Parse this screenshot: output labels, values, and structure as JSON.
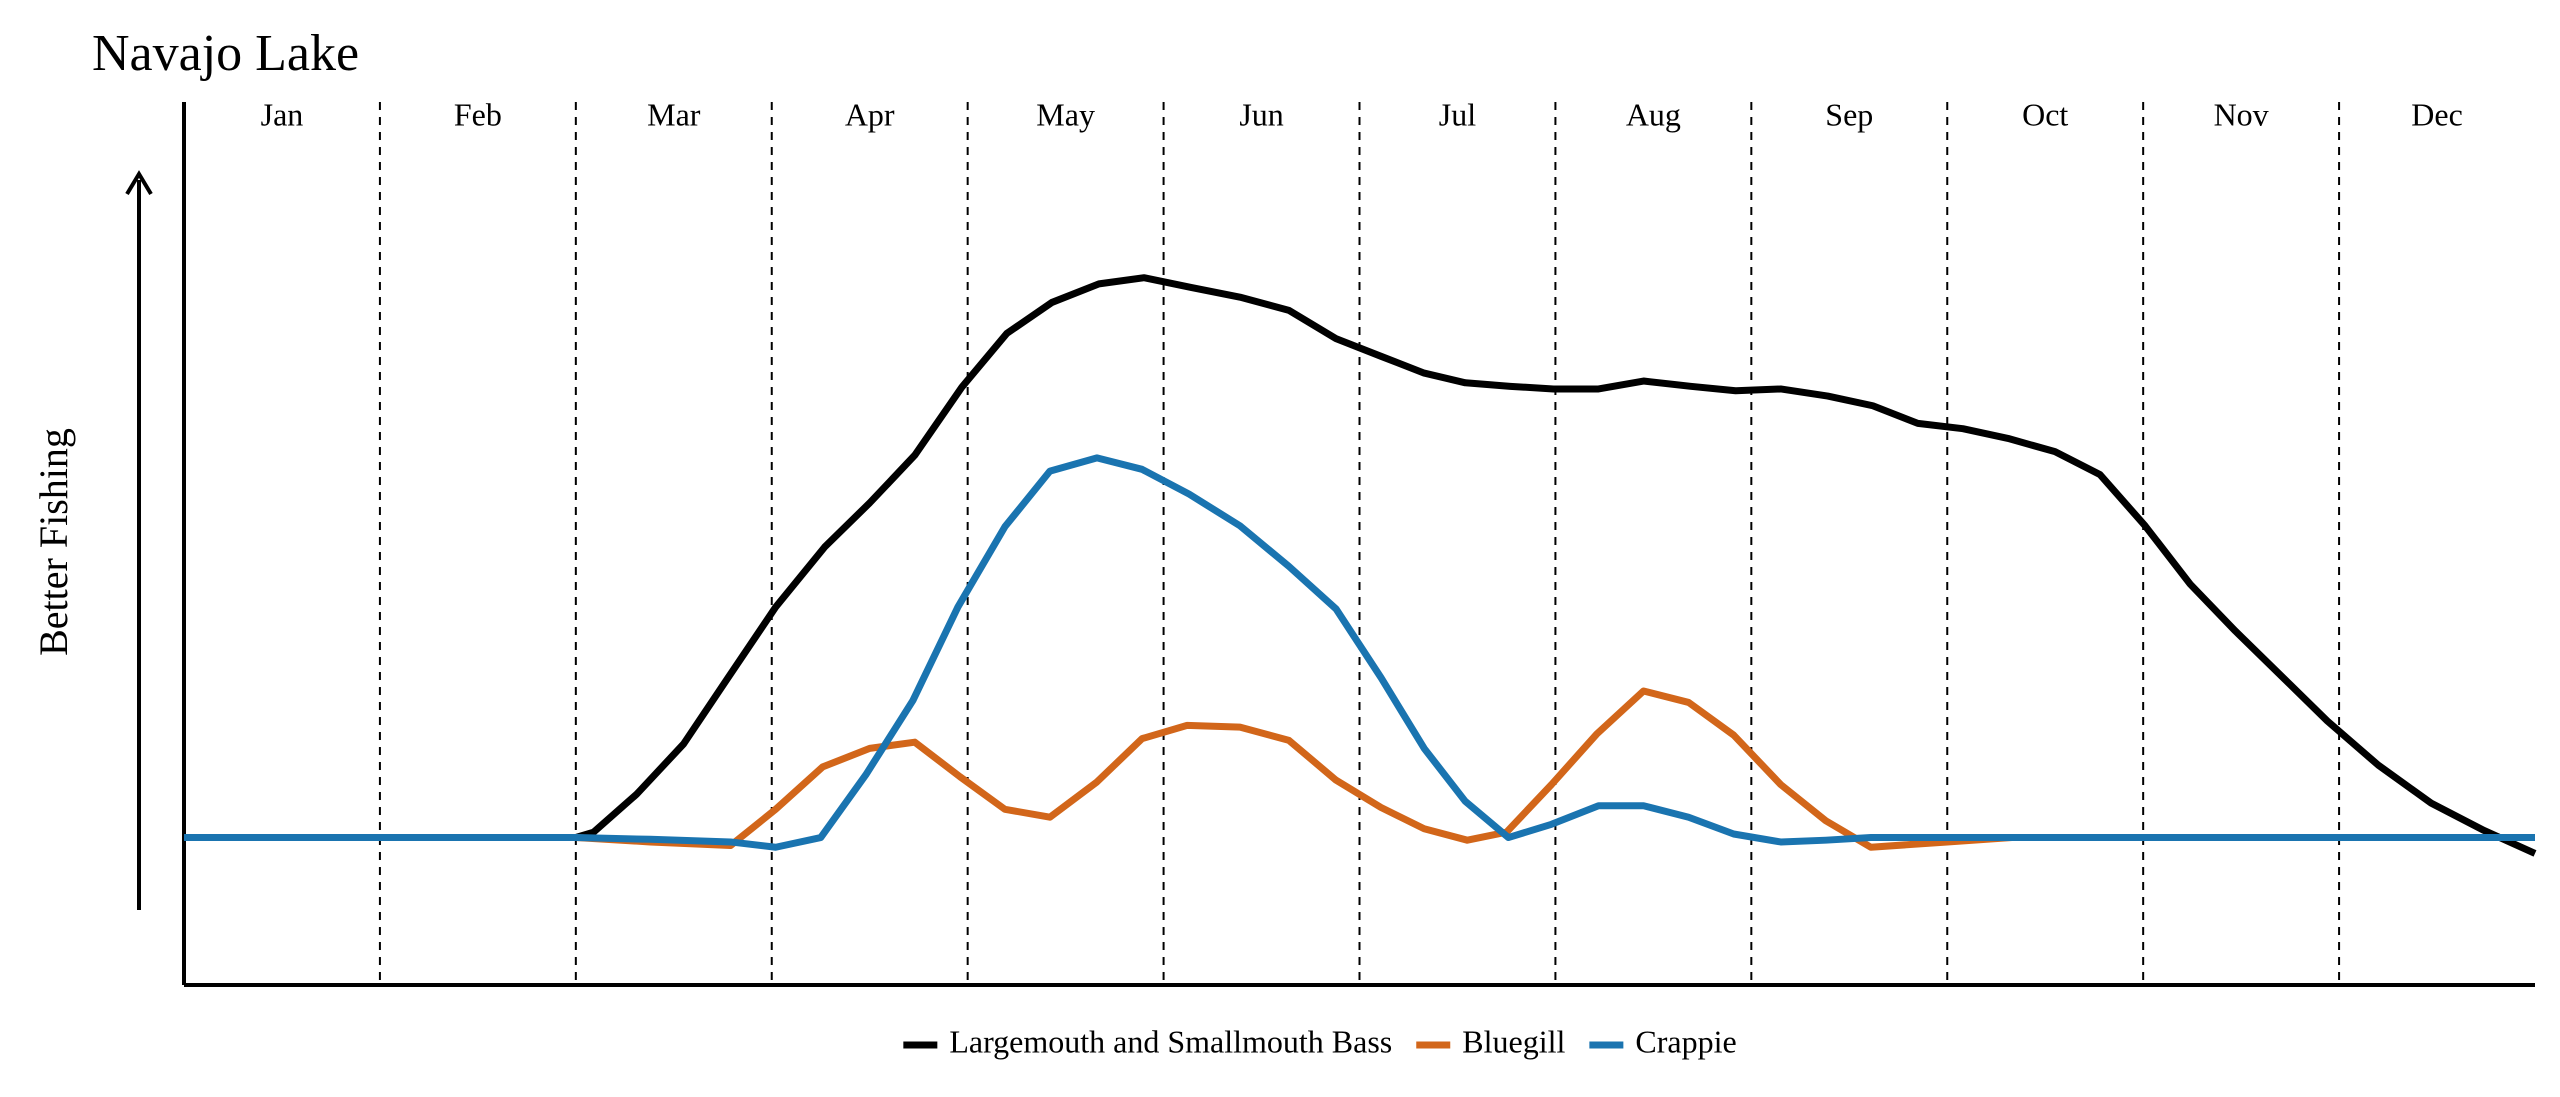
{
  "chart_data": {
    "type": "line",
    "title": "Navajo Lake",
    "ylabel": "Better Fishing",
    "categories": [
      "Jan",
      "Feb",
      "Mar",
      "Apr",
      "May",
      "Jun",
      "Jul",
      "Aug",
      "Sep",
      "Oct",
      "Nov",
      "Dec"
    ],
    "xlim": [
      0,
      12
    ],
    "ylim": [
      0,
      100
    ],
    "series": [
      {
        "name": "Largemouth and Smallmouth Bass",
        "color": "#000000",
        "x": [
          0,
          2,
          2.09,
          2.31,
          2.55,
          2.78,
          3.02,
          3.27,
          3.5,
          3.73,
          3.97,
          4.2,
          4.43,
          4.67,
          4.9,
          5.14,
          5.39,
          5.64,
          5.88,
          6.11,
          6.33,
          6.54,
          6.77,
          6.99,
          7.22,
          7.45,
          7.69,
          7.92,
          8.15,
          8.39,
          8.62,
          8.85,
          9.08,
          9.31,
          9.55,
          9.78,
          10.01,
          10.24,
          10.47,
          10.71,
          10.94,
          11.2,
          11.47,
          11.74,
          12
        ],
        "values": [
          16.7,
          16.7,
          17.3,
          21.6,
          27.3,
          34.9,
          42.8,
          49.6,
          54.6,
          60.0,
          67.7,
          73.8,
          77.3,
          79.4,
          80.1,
          79.0,
          77.9,
          76.4,
          73.2,
          71.2,
          69.3,
          68.2,
          67.8,
          67.5,
          67.5,
          68.4,
          67.8,
          67.3,
          67.5,
          66.7,
          65.6,
          63.6,
          63.0,
          61.9,
          60.4,
          57.8,
          52.0,
          45.4,
          40.1,
          34.9,
          29.9,
          24.9,
          20.6,
          17.5,
          14.9
        ]
      },
      {
        "name": "Bluegill",
        "color": "#d2661a",
        "x": [
          0,
          2,
          2.38,
          2.79,
          3.02,
          3.26,
          3.5,
          3.73,
          3.96,
          4.19,
          4.42,
          4.66,
          4.89,
          5.12,
          5.39,
          5.64,
          5.88,
          6.11,
          6.33,
          6.55,
          6.75,
          6.98,
          7.21,
          7.45,
          7.68,
          7.91,
          8.15,
          8.38,
          8.61,
          9,
          9.33,
          12
        ],
        "values": [
          16.7,
          16.7,
          16.2,
          15.8,
          19.9,
          24.7,
          26.8,
          27.5,
          23.6,
          19.9,
          19.0,
          23.0,
          27.9,
          29.4,
          29.2,
          27.7,
          23.2,
          20.1,
          17.7,
          16.4,
          17.3,
          22.7,
          28.4,
          33.3,
          32.0,
          28.3,
          22.7,
          18.6,
          15.6,
          16.2,
          16.7,
          16.7
        ]
      },
      {
        "name": "Crappie",
        "color": "#1a74b0",
        "x": [
          0,
          2,
          2.38,
          2.79,
          3.02,
          3.25,
          3.48,
          3.72,
          3.95,
          4.19,
          4.42,
          4.66,
          4.89,
          5.13,
          5.39,
          5.64,
          5.88,
          6.11,
          6.33,
          6.54,
          6.76,
          6.98,
          7.22,
          7.45,
          7.68,
          7.91,
          8.15,
          8.38,
          8.61,
          12
        ],
        "values": [
          16.7,
          16.7,
          16.5,
          16.2,
          15.6,
          16.7,
          23.8,
          32.2,
          42.8,
          51.9,
          58.2,
          59.7,
          58.4,
          55.6,
          52.0,
          47.4,
          42.6,
          34.8,
          26.8,
          20.8,
          16.7,
          18.2,
          20.3,
          20.3,
          19.0,
          17.1,
          16.2,
          16.4,
          16.7,
          16.7
        ]
      }
    ]
  }
}
